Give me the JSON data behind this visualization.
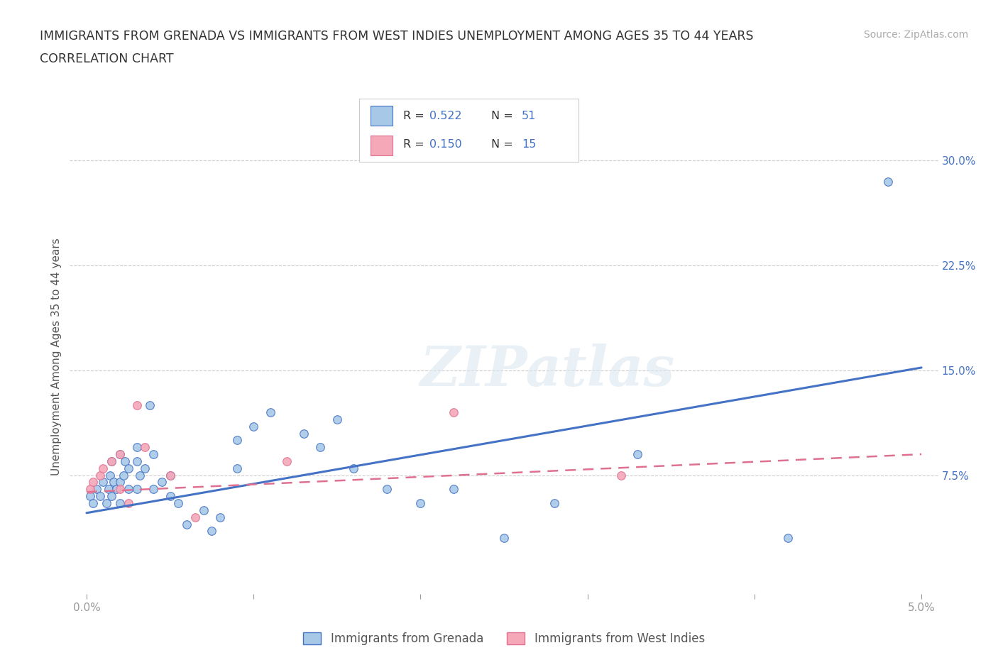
{
  "title_line1": "IMMIGRANTS FROM GRENADA VS IMMIGRANTS FROM WEST INDIES UNEMPLOYMENT AMONG AGES 35 TO 44 YEARS",
  "title_line2": "CORRELATION CHART",
  "source_text": "Source: ZipAtlas.com",
  "ylabel": "Unemployment Among Ages 35 to 44 years",
  "xlim": [
    -0.001,
    0.051
  ],
  "ylim": [
    -0.01,
    0.33
  ],
  "xticks": [
    0.0,
    0.01,
    0.02,
    0.03,
    0.04,
    0.05
  ],
  "xticklabels": [
    "0.0%",
    "",
    "",
    "",
    "",
    "5.0%"
  ],
  "yticks_right": [
    0.075,
    0.15,
    0.225,
    0.3
  ],
  "yticklabels_right": [
    "7.5%",
    "15.0%",
    "22.5%",
    "30.0%"
  ],
  "watermark": "ZIPatlas",
  "color_blue": "#a8c8e8",
  "color_pink": "#f4a8b8",
  "line_blue": "#4472c4",
  "line_pink": "#e07090",
  "grenada_x": [
    0.0002,
    0.0004,
    0.0006,
    0.0008,
    0.001,
    0.0012,
    0.0013,
    0.0014,
    0.0015,
    0.0015,
    0.0016,
    0.0018,
    0.002,
    0.002,
    0.002,
    0.0022,
    0.0023,
    0.0025,
    0.0025,
    0.003,
    0.003,
    0.003,
    0.0032,
    0.0035,
    0.0038,
    0.004,
    0.004,
    0.0045,
    0.005,
    0.005,
    0.0055,
    0.006,
    0.007,
    0.0075,
    0.008,
    0.009,
    0.009,
    0.01,
    0.011,
    0.013,
    0.014,
    0.015,
    0.016,
    0.018,
    0.02,
    0.022,
    0.025,
    0.028,
    0.033,
    0.042,
    0.048
  ],
  "grenada_y": [
    0.06,
    0.055,
    0.065,
    0.06,
    0.07,
    0.055,
    0.065,
    0.075,
    0.06,
    0.085,
    0.07,
    0.065,
    0.055,
    0.07,
    0.09,
    0.075,
    0.085,
    0.08,
    0.065,
    0.065,
    0.085,
    0.095,
    0.075,
    0.08,
    0.125,
    0.065,
    0.09,
    0.07,
    0.075,
    0.06,
    0.055,
    0.04,
    0.05,
    0.035,
    0.045,
    0.08,
    0.1,
    0.11,
    0.12,
    0.105,
    0.095,
    0.115,
    0.08,
    0.065,
    0.055,
    0.065,
    0.03,
    0.055,
    0.09,
    0.03,
    0.285
  ],
  "westindies_x": [
    0.0002,
    0.0004,
    0.0008,
    0.001,
    0.0015,
    0.002,
    0.002,
    0.0025,
    0.003,
    0.0035,
    0.005,
    0.0065,
    0.012,
    0.022,
    0.032
  ],
  "westindies_y": [
    0.065,
    0.07,
    0.075,
    0.08,
    0.085,
    0.065,
    0.09,
    0.055,
    0.125,
    0.095,
    0.075,
    0.045,
    0.085,
    0.12,
    0.075
  ],
  "grenada_trend_x": [
    0.0,
    0.05
  ],
  "grenada_trend_y": [
    0.048,
    0.152
  ],
  "westindies_trend_x": [
    0.0,
    0.05
  ],
  "westindies_trend_y": [
    0.063,
    0.09
  ],
  "grid_color": "#cccccc",
  "background_color": "#ffffff",
  "title_color": "#333333",
  "axis_label_color": "#555555",
  "tick_color": "#999999"
}
